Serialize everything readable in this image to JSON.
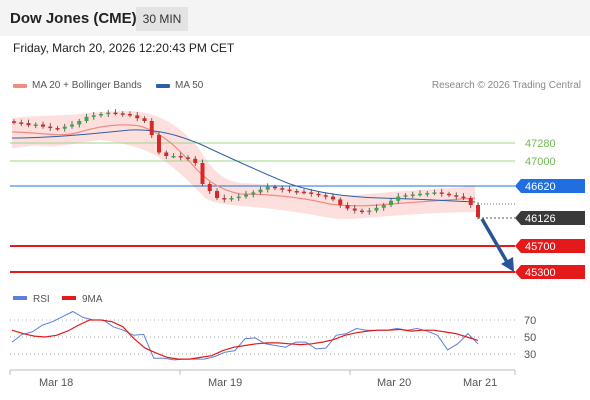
{
  "header": {
    "title": "Dow Jones (CME)",
    "timeframe": "30 MIN"
  },
  "timestamp": "Friday, March 20, 2026 12:20:43 PM CET",
  "legend": {
    "ma20_bb": {
      "label": "MA 20 + Bollinger Bands",
      "color": "#f28b82"
    },
    "ma50": {
      "label": "MA 50",
      "color": "#2d5fa6"
    },
    "copyright": "Research © 2026 Trading Central"
  },
  "levels": [
    {
      "value": 47280,
      "label": "47280",
      "kind": "resistance",
      "color": "#8fcf6e"
    },
    {
      "value": 47000,
      "label": "47000",
      "kind": "resistance",
      "color": "#8fcf6e"
    },
    {
      "value": 46620,
      "label": "46620",
      "kind": "pivot",
      "color": "#1f6fe0"
    },
    {
      "value": 45700,
      "label": "45700",
      "kind": "support",
      "color": "#e41a1a"
    },
    {
      "value": 45300,
      "label": "45300",
      "kind": "support",
      "color": "#e41a1a"
    }
  ],
  "last_price": {
    "value": 46126,
    "label": "46126"
  },
  "rsi": {
    "legend_rsi": "RSI",
    "legend_rsi_color": "#5b7fdb",
    "legend_9ma": "9MA",
    "legend_9ma_color": "#e41a1a",
    "ticks": [
      "70",
      "50",
      "30"
    ]
  },
  "x_axis_labels": [
    "Mar 18",
    "Mar 19",
    "Mar 20",
    "Mar 21"
  ],
  "chart_data": {
    "type": "candlestick",
    "price_range": [
      45200,
      47800
    ],
    "close_series": [
      47480,
      47470,
      47440,
      47450,
      47420,
      47400,
      47390,
      47420,
      47450,
      47500,
      47560,
      47580,
      47600,
      47620,
      47610,
      47600,
      47580,
      47540,
      47500,
      47300,
      47050,
      47000,
      47000,
      46980,
      46960,
      46900,
      46600,
      46500,
      46400,
      46380,
      46400,
      46420,
      46450,
      46480,
      46520,
      46560,
      46540,
      46520,
      46500,
      46490,
      46480,
      46460,
      46440,
      46420,
      46380,
      46300,
      46250,
      46220,
      46200,
      46220,
      46260,
      46300,
      46360,
      46420,
      46440,
      46450,
      46460,
      46470,
      46480,
      46460,
      46440,
      46420,
      46400,
      46300,
      46126
    ],
    "rsi_values": [
      44,
      53,
      56,
      64,
      68,
      74,
      80,
      73,
      70,
      70,
      62,
      58,
      52,
      53,
      25,
      25,
      23,
      24,
      24,
      24,
      27,
      32,
      34,
      48,
      49,
      42,
      40,
      38,
      44,
      44,
      36,
      37,
      52,
      54,
      60,
      58,
      58,
      58,
      60,
      58,
      60,
      57,
      52,
      35,
      42,
      54,
      42
    ],
    "rsi_9ma_values": [
      58,
      54,
      51,
      50,
      52,
      57,
      64,
      70,
      70,
      68,
      62,
      48,
      37,
      31,
      26,
      24,
      24,
      26,
      28,
      34,
      38,
      40,
      42,
      43,
      43,
      42,
      41,
      42,
      44,
      47,
      52,
      55,
      57,
      58,
      58,
      59,
      57,
      58,
      58,
      56,
      54,
      50,
      46
    ],
    "projection": {
      "from": 46126,
      "to": 45300
    }
  }
}
